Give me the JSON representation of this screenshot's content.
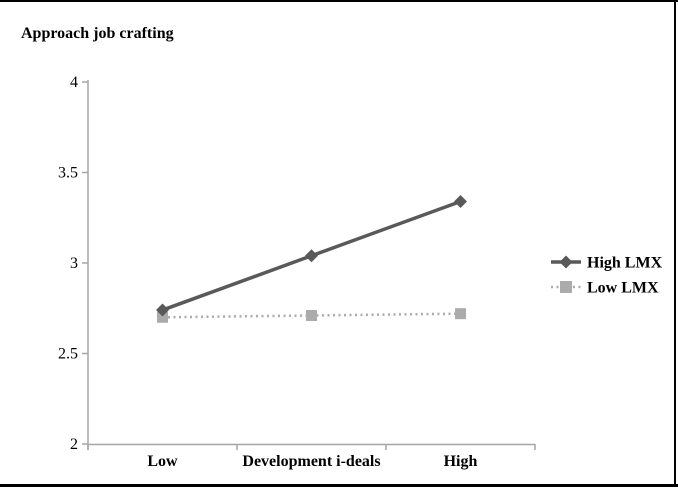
{
  "figure": {
    "background": "#ffffff",
    "rule_color": "#000000"
  },
  "chart_data": {
    "type": "line",
    "title": "Approach job crafting",
    "categories": [
      "Low",
      "Development i-deals",
      "High"
    ],
    "x_concept_label": "Development i-deals",
    "series": [
      {
        "name": "High LMX",
        "values": [
          2.74,
          3.04,
          3.34
        ],
        "color": "#595959",
        "marker": "diamond",
        "line_style": "solid"
      },
      {
        "name": "Low LMX",
        "values": [
          2.7,
          2.71,
          2.72
        ],
        "color": "#ABABAB",
        "marker": "square",
        "line_style": "dotted"
      }
    ],
    "ylim": [
      2,
      4
    ],
    "y_ticks": [
      2,
      2.5,
      3,
      3.5,
      4
    ],
    "y_tick_labels": [
      "2",
      "2.5",
      "3",
      "3.5",
      "4"
    ],
    "grid": false,
    "legend_position": "right",
    "axis_color": "#A6A6A6",
    "text_color": "#000000"
  }
}
